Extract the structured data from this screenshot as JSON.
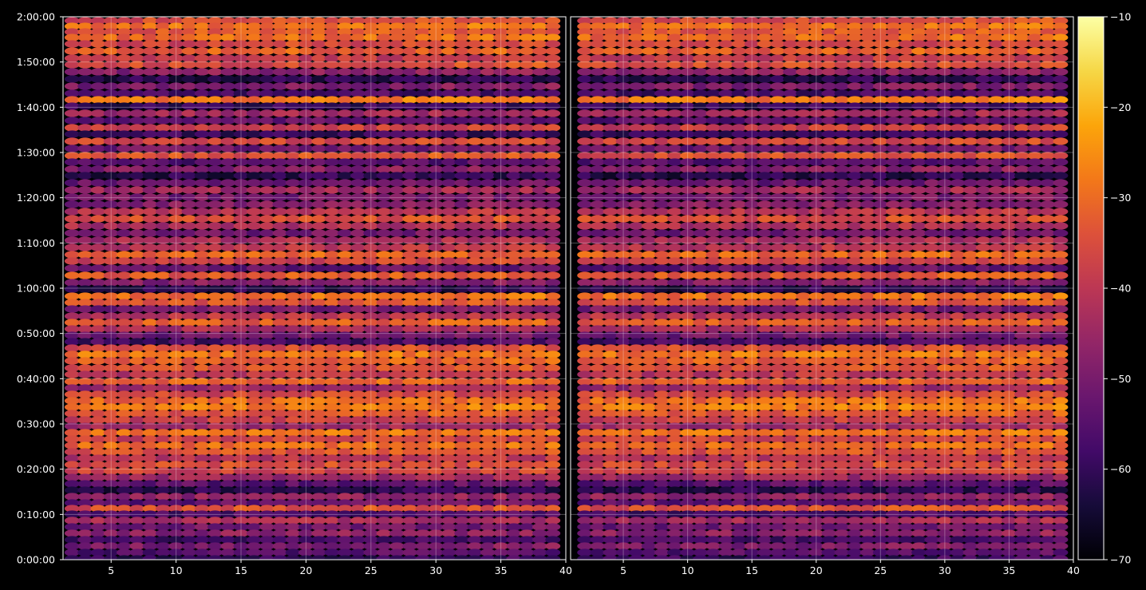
{
  "chart_data": {
    "type": "heatmap",
    "colormap": "inferno",
    "background": "#000000",
    "grid": true,
    "panels": [
      {
        "name": "left",
        "x_range": [
          1.3,
          40
        ],
        "x_ticks": [
          5,
          10,
          15,
          20,
          25,
          30,
          35,
          40
        ],
        "x_tick_labels": [
          "5",
          "10",
          "15",
          "20",
          "25",
          "30",
          "35",
          "40"
        ]
      },
      {
        "name": "right",
        "x_range": [
          0.9,
          40
        ],
        "x_ticks": [
          5,
          10,
          15,
          20,
          25,
          30,
          35,
          40
        ],
        "x_tick_labels": [
          "5",
          "10",
          "15",
          "20",
          "25",
          "30",
          "35",
          "40"
        ]
      }
    ],
    "y_range_seconds": [
      0,
      7200
    ],
    "y_ticks_seconds": [
      0,
      600,
      1200,
      1800,
      2400,
      3000,
      3600,
      4200,
      4800,
      5400,
      6000,
      6600,
      7200
    ],
    "y_tick_labels": [
      "0:00:00",
      "0:10:00",
      "0:20:00",
      "0:30:00",
      "0:40:00",
      "0:50:00",
      "1:00:00",
      "1:10:00",
      "1:20:00",
      "1:30:00",
      "1:40:00",
      "1:50:00",
      "2:00:00"
    ],
    "colorbar": {
      "range": [
        -70,
        -10
      ],
      "ticks": [
        -10,
        -20,
        -30,
        -40,
        -50,
        -60,
        -70
      ],
      "tick_labels": [
        "−10",
        "−20",
        "−30",
        "−40",
        "−50",
        "−60",
        "−70"
      ]
    },
    "row_levels": [
      {
        "t": 5,
        "v": -36
      },
      {
        "t": 12,
        "v": -30
      },
      {
        "t": 19,
        "v": -34
      },
      {
        "t": 26,
        "v": -31
      },
      {
        "t": 34,
        "v": -37
      },
      {
        "t": 43,
        "v": -33
      },
      {
        "t": 52,
        "v": -40
      },
      {
        "t": 60,
        "v": -36
      },
      {
        "t": 69,
        "v": -48
      },
      {
        "t": 78,
        "v": -62
      },
      {
        "t": 87,
        "v": -50
      },
      {
        "t": 96,
        "v": -58
      },
      {
        "t": 104,
        "v": -29
      },
      {
        "t": 112,
        "v": -60
      },
      {
        "t": 121,
        "v": -45
      },
      {
        "t": 130,
        "v": -55
      },
      {
        "t": 139,
        "v": -39
      },
      {
        "t": 147,
        "v": -60
      },
      {
        "t": 156,
        "v": -37
      },
      {
        "t": 165,
        "v": -52
      },
      {
        "t": 174,
        "v": -35
      },
      {
        "t": 182,
        "v": -56
      },
      {
        "t": 191,
        "v": -49
      },
      {
        "t": 199,
        "v": -62
      },
      {
        "t": 208,
        "v": -53
      },
      {
        "t": 217,
        "v": -45
      },
      {
        "t": 226,
        "v": -51
      },
      {
        "t": 235,
        "v": -49
      },
      {
        "t": 244,
        "v": -42
      },
      {
        "t": 253,
        "v": -36
      },
      {
        "t": 262,
        "v": -43
      },
      {
        "t": 271,
        "v": -52
      },
      {
        "t": 280,
        "v": -44
      },
      {
        "t": 289,
        "v": -41
      },
      {
        "t": 298,
        "v": -32
      },
      {
        "t": 306,
        "v": -38
      },
      {
        "t": 315,
        "v": -54
      },
      {
        "t": 324,
        "v": -34
      },
      {
        "t": 333,
        "v": -49
      },
      {
        "t": 341,
        "v": -62
      },
      {
        "t": 350,
        "v": -30
      },
      {
        "t": 358,
        "v": -35
      },
      {
        "t": 366,
        "v": -51
      },
      {
        "t": 375,
        "v": -41
      },
      {
        "t": 383,
        "v": -33
      },
      {
        "t": 391,
        "v": -44
      },
      {
        "t": 399,
        "v": -52
      },
      {
        "t": 407,
        "v": -58
      },
      {
        "t": 415,
        "v": -36
      },
      {
        "t": 423,
        "v": -29
      },
      {
        "t": 431,
        "v": -33
      },
      {
        "t": 440,
        "v": -35
      },
      {
        "t": 448,
        "v": -41
      },
      {
        "t": 457,
        "v": -32
      },
      {
        "t": 465,
        "v": -46
      },
      {
        "t": 473,
        "v": -37
      },
      {
        "t": 481,
        "v": -31
      },
      {
        "t": 489,
        "v": -28
      },
      {
        "t": 497,
        "v": -34
      },
      {
        "t": 505,
        "v": -39
      },
      {
        "t": 513,
        "v": -45
      },
      {
        "t": 521,
        "v": -30
      },
      {
        "t": 529,
        "v": -38
      },
      {
        "t": 537,
        "v": -31
      },
      {
        "t": 545,
        "v": -35
      },
      {
        "t": 553,
        "v": -42
      },
      {
        "t": 561,
        "v": -36
      },
      {
        "t": 569,
        "v": -38
      },
      {
        "t": 577,
        "v": -46
      },
      {
        "t": 585,
        "v": -55
      },
      {
        "t": 593,
        "v": -62
      },
      {
        "t": 601,
        "v": -47
      },
      {
        "t": 609,
        "v": -54
      },
      {
        "t": 616,
        "v": -35
      },
      {
        "t": 623,
        "v": -57
      },
      {
        "t": 631,
        "v": -44
      },
      {
        "t": 639,
        "v": -52
      },
      {
        "t": 647,
        "v": -48
      },
      {
        "t": 655,
        "v": -58
      },
      {
        "t": 663,
        "v": -50
      },
      {
        "t": 671,
        "v": -56
      },
      {
        "t": 679,
        "v": -60
      },
      {
        "t": 687,
        "v": -47
      },
      {
        "t": 696,
        "v": -42
      }
    ]
  }
}
